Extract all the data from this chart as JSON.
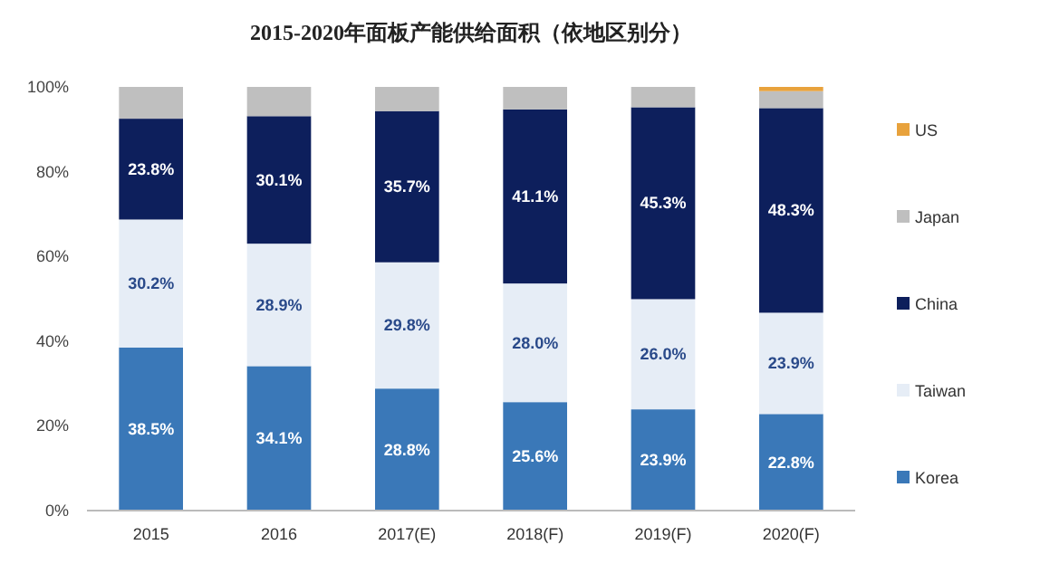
{
  "chart_data": {
    "type": "bar",
    "stacked": true,
    "title": "2015-2020年面板产能供给面积（依地区别分）",
    "categories": [
      "2015",
      "2016",
      "2017(E)",
      "2018(F)",
      "2019(F)",
      "2020(F)"
    ],
    "series": [
      {
        "name": "Korea",
        "color": "#3a78b8",
        "values": [
          38.5,
          34.1,
          28.8,
          25.6,
          23.9,
          22.8
        ],
        "value_labels": [
          "38.5%",
          "34.1%",
          "28.8%",
          "25.6%",
          "23.9%",
          "22.8%"
        ]
      },
      {
        "name": "Taiwan",
        "color": "#e6edf6",
        "values": [
          30.2,
          28.9,
          29.8,
          28.0,
          26.0,
          23.9
        ],
        "value_labels": [
          "30.2%",
          "28.9%",
          "29.8%",
          "28.0%",
          "26.0%",
          "23.9%"
        ]
      },
      {
        "name": "China",
        "color": "#0d1f5c",
        "values": [
          23.8,
          30.1,
          35.7,
          41.1,
          45.3,
          48.3
        ],
        "value_labels": [
          "23.8%",
          "30.1%",
          "35.7%",
          "41.1%",
          "45.3%",
          "48.3%"
        ]
      },
      {
        "name": "Japan",
        "color": "#bfbfbf",
        "values": [
          7.5,
          6.9,
          5.7,
          5.3,
          4.8,
          4.0
        ]
      },
      {
        "name": "US",
        "color": "#e8a23c",
        "values": [
          0,
          0,
          0,
          0,
          0,
          1.0
        ]
      }
    ],
    "ylim": [
      0,
      100
    ],
    "yticks": [
      {
        "value": 0,
        "label": "0%"
      },
      {
        "value": 20,
        "label": "20%"
      },
      {
        "value": 40,
        "label": "40%"
      },
      {
        "value": 60,
        "label": "60%"
      },
      {
        "value": 80,
        "label": "80%"
      },
      {
        "value": 100,
        "label": "100%"
      }
    ],
    "grid": false,
    "legend": "right"
  }
}
